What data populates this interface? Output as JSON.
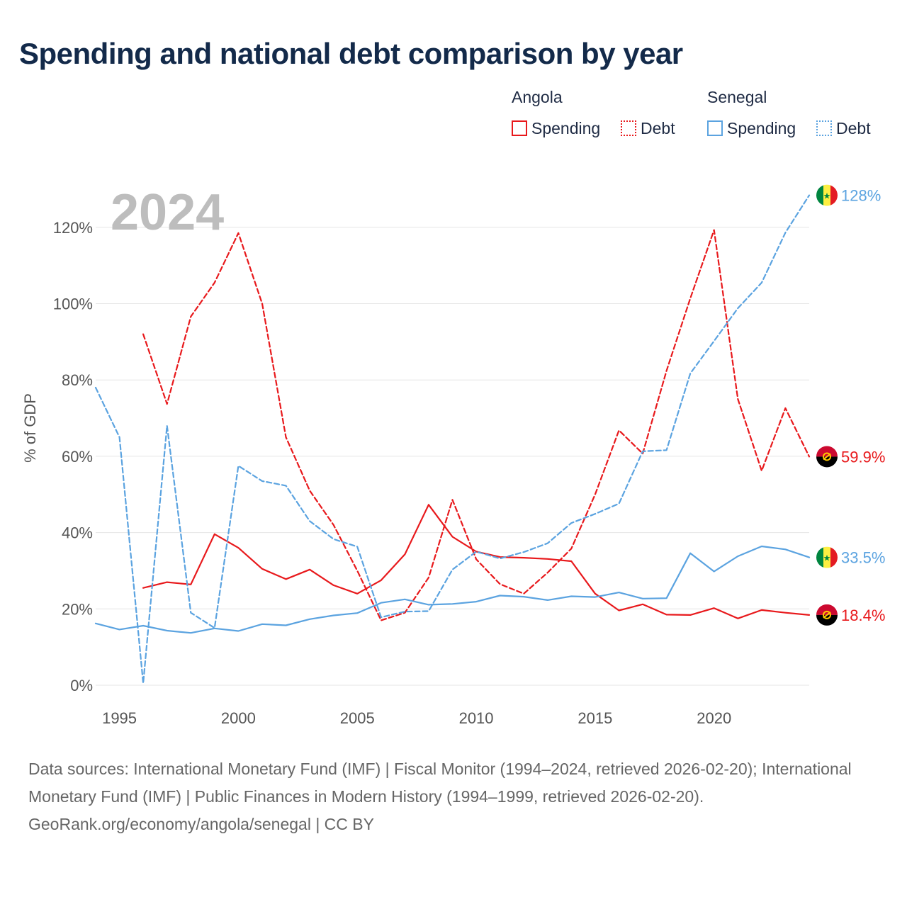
{
  "title": "Spending and national debt comparison by year",
  "legend": {
    "groups": [
      {
        "label": "Angola",
        "items": [
          {
            "label": "Spending"
          },
          {
            "label": "Debt"
          }
        ]
      },
      {
        "label": "Senegal",
        "items": [
          {
            "label": "Spending"
          },
          {
            "label": "Debt"
          }
        ]
      }
    ]
  },
  "colors": {
    "angola": "#e8191c",
    "senegal": "#5ba3e0",
    "grid": "#e6e6e6"
  },
  "icons": {
    "angola_flag": "angola-flag-icon",
    "senegal_flag": "senegal-flag-icon"
  },
  "chart_data": {
    "type": "line",
    "title": "Spending and national debt comparison by year",
    "year_overlay": "2024",
    "xlabel": "",
    "ylabel": "% of GDP",
    "xlim": [
      1994,
      2024
    ],
    "ylim": [
      0,
      130
    ],
    "x_ticks": [
      1995,
      2000,
      2005,
      2010,
      2015,
      2020
    ],
    "y_ticks": [
      0,
      20,
      40,
      60,
      80,
      100,
      120
    ],
    "y_tick_labels": [
      "0%",
      "20%",
      "40%",
      "60%",
      "80%",
      "100%",
      "120%"
    ],
    "grid": true,
    "series": [
      {
        "name": "Angola Spending",
        "country": "Angola",
        "measure": "Spending",
        "style": "solid",
        "x": [
          1996,
          1997,
          1998,
          1999,
          2000,
          2001,
          2002,
          2003,
          2004,
          2005,
          2006,
          2007,
          2008,
          2009,
          2010,
          2011,
          2012,
          2013,
          2014,
          2015,
          2016,
          2017,
          2018,
          2019,
          2020,
          2021,
          2022,
          2023,
          2024
        ],
        "values": [
          25.5,
          27,
          26.4,
          39.6,
          36,
          30.5,
          27.8,
          30.3,
          26.2,
          24,
          27.5,
          34.3,
          47.3,
          38.9,
          35,
          33.6,
          33.4,
          33.1,
          32.5,
          24,
          19.6,
          21.2,
          18.5,
          18.4,
          20.2,
          17.5,
          19.7,
          19,
          18.4
        ],
        "end_label": "18.4%"
      },
      {
        "name": "Angola Debt",
        "country": "Angola",
        "measure": "Debt",
        "style": "dashed",
        "x": [
          1996,
          1997,
          1998,
          1999,
          2000,
          2001,
          2002,
          2003,
          2004,
          2005,
          2006,
          2007,
          2008,
          2009,
          2010,
          2011,
          2012,
          2013,
          2014,
          2015,
          2016,
          2017,
          2018,
          2019,
          2020,
          2021,
          2022,
          2023,
          2024
        ],
        "values": [
          92,
          73.7,
          96.6,
          105.5,
          118.5,
          100,
          65,
          51,
          42,
          30,
          17,
          19,
          28.2,
          48.6,
          33,
          26.5,
          24,
          29.5,
          35.8,
          50,
          66.8,
          60.7,
          82.4,
          101.4,
          119.3,
          75,
          56.2,
          72.6,
          59.9
        ],
        "end_label": "59.9%"
      },
      {
        "name": "Senegal Spending",
        "country": "Senegal",
        "measure": "Spending",
        "style": "solid",
        "x": [
          1994,
          1995,
          1996,
          1997,
          1998,
          1999,
          2000,
          2001,
          2002,
          2003,
          2004,
          2005,
          2006,
          2007,
          2008,
          2009,
          2010,
          2011,
          2012,
          2013,
          2014,
          2015,
          2016,
          2017,
          2018,
          2019,
          2020,
          2021,
          2022,
          2023,
          2024
        ],
        "values": [
          16.2,
          14.6,
          15.6,
          14.3,
          13.7,
          14.9,
          14.2,
          16,
          15.7,
          17.3,
          18.3,
          18.9,
          21.6,
          22.5,
          21.1,
          21.3,
          21.9,
          23.5,
          23.2,
          22.3,
          23.3,
          23.1,
          24.3,
          22.7,
          22.8,
          34.6,
          29.8,
          33.8,
          36.4,
          35.6,
          33.5
        ],
        "end_label": "33.5%"
      },
      {
        "name": "Senegal Debt",
        "country": "Senegal",
        "measure": "Debt",
        "style": "dashed",
        "x": [
          1994,
          1995,
          1996,
          1997,
          1998,
          1999,
          2000,
          2001,
          2002,
          2003,
          2004,
          2005,
          2006,
          2007,
          2008,
          2009,
          2010,
          2011,
          2012,
          2013,
          2014,
          2015,
          2016,
          2017,
          2018,
          2019,
          2020,
          2021,
          2022,
          2023,
          2024
        ],
        "values": [
          78,
          65,
          0.5,
          68,
          19,
          15,
          57.5,
          53.5,
          52.3,
          43,
          38.3,
          36.3,
          17.8,
          19.3,
          19.4,
          30.3,
          35,
          33.2,
          34.9,
          37.2,
          42.5,
          44.9,
          47.6,
          61.3,
          61.6,
          81.7,
          90.2,
          98.8,
          105.5,
          118.6,
          128.4
        ],
        "end_label": "128%"
      }
    ]
  },
  "footer": {
    "sources": "Data sources: International Monetary Fund (IMF) | Fiscal Monitor (1994–2024, retrieved 2026-02-20); International Monetary Fund (IMF) | Public Finances in Modern History (1994–1999, retrieved 2026-02-20).",
    "credit": "GeoRank.org/economy/angola/senegal | CC BY"
  }
}
